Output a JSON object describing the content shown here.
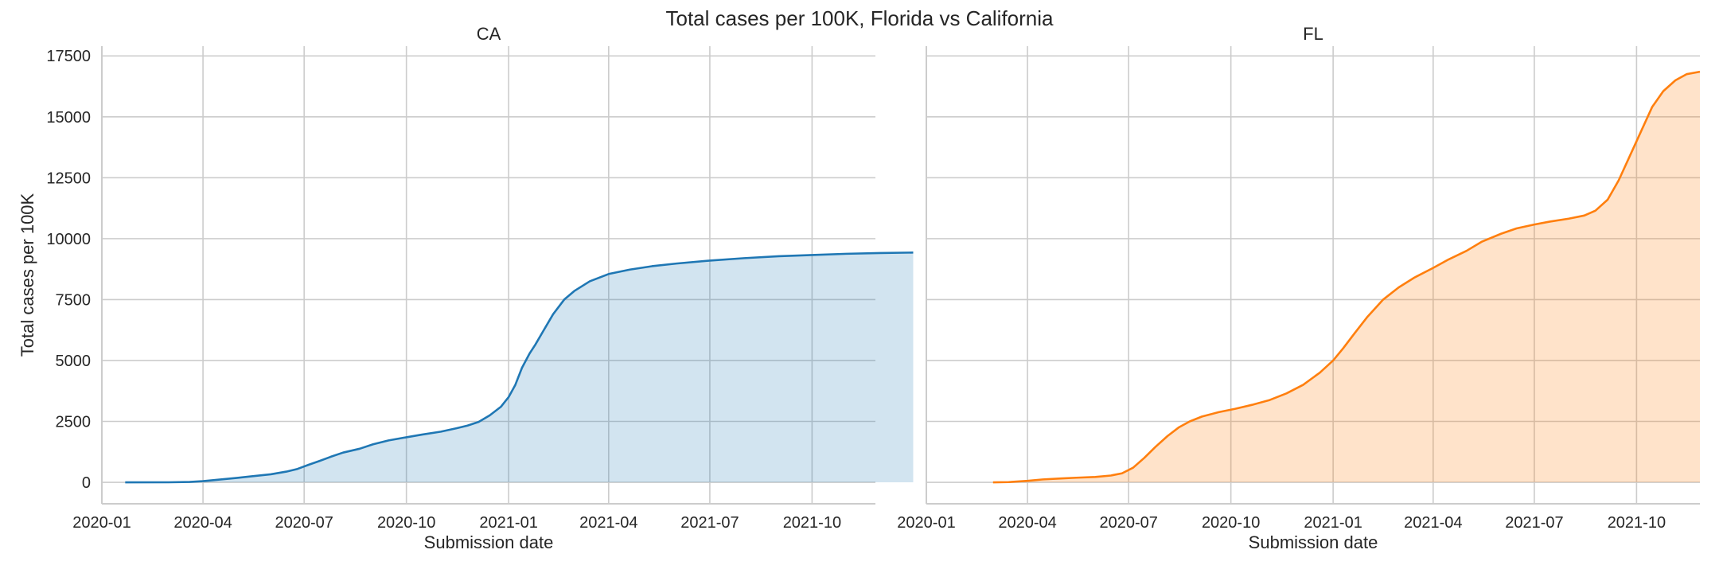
{
  "figure": {
    "title": "Total cases per 100K, Florida vs California"
  },
  "chart_data": [
    {
      "type": "area",
      "title": "CA",
      "xlabel": "Submission date",
      "ylabel": "Total cases per 100K",
      "x_ticks": [
        "2020-01",
        "2020-04",
        "2020-07",
        "2020-10",
        "2021-01",
        "2021-04",
        "2021-07",
        "2021-10"
      ],
      "y_ticks": [
        0,
        2500,
        5000,
        7500,
        10000,
        12500,
        15000,
        17500
      ],
      "xlim": [
        "2020-01-01",
        "2021-11-27"
      ],
      "ylim": [
        -880,
        17900
      ],
      "grid": true,
      "line_color": "#1f77b4",
      "fill_color": "#1f77b4",
      "fill_opacity": 0.2,
      "series": [
        {
          "points": [
            [
              "2020-01-22",
              0
            ],
            [
              "2020-03-01",
              2
            ],
            [
              "2020-03-20",
              15
            ],
            [
              "2020-04-01",
              50
            ],
            [
              "2020-04-15",
              110
            ],
            [
              "2020-05-01",
              180
            ],
            [
              "2020-05-15",
              250
            ],
            [
              "2020-06-01",
              330
            ],
            [
              "2020-06-15",
              440
            ],
            [
              "2020-06-25",
              550
            ],
            [
              "2020-07-05",
              720
            ],
            [
              "2020-07-15",
              880
            ],
            [
              "2020-07-25",
              1050
            ],
            [
              "2020-08-05",
              1220
            ],
            [
              "2020-08-20",
              1380
            ],
            [
              "2020-09-01",
              1560
            ],
            [
              "2020-09-15",
              1720
            ],
            [
              "2020-10-01",
              1850
            ],
            [
              "2020-10-15",
              1960
            ],
            [
              "2020-11-01",
              2080
            ],
            [
              "2020-11-15",
              2220
            ],
            [
              "2020-11-25",
              2330
            ],
            [
              "2020-12-05",
              2480
            ],
            [
              "2020-12-15",
              2750
            ],
            [
              "2020-12-25",
              3100
            ],
            [
              "2021-01-01",
              3500
            ],
            [
              "2021-01-07",
              4000
            ],
            [
              "2021-01-13",
              4700
            ],
            [
              "2021-01-20",
              5300
            ],
            [
              "2021-01-25",
              5650
            ],
            [
              "2021-02-01",
              6200
            ],
            [
              "2021-02-10",
              6900
            ],
            [
              "2021-02-20",
              7500
            ],
            [
              "2021-03-01",
              7850
            ],
            [
              "2021-03-15",
              8250
            ],
            [
              "2021-04-01",
              8550
            ],
            [
              "2021-04-20",
              8730
            ],
            [
              "2021-05-10",
              8870
            ],
            [
              "2021-06-01",
              8980
            ],
            [
              "2021-07-01",
              9100
            ],
            [
              "2021-08-01",
              9200
            ],
            [
              "2021-09-01",
              9280
            ],
            [
              "2021-10-01",
              9330
            ],
            [
              "2021-11-01",
              9380
            ],
            [
              "2021-12-01",
              9410
            ],
            [
              "2021-12-31",
              9430
            ]
          ]
        }
      ]
    },
    {
      "type": "area",
      "title": "FL",
      "xlabel": "Submission date",
      "ylabel": "",
      "x_ticks": [
        "2020-01",
        "2020-04",
        "2020-07",
        "2020-10",
        "2021-01",
        "2021-04",
        "2021-07",
        "2021-10"
      ],
      "y_ticks": [
        0,
        2500,
        5000,
        7500,
        10000,
        12500,
        15000,
        17500
      ],
      "xlim": [
        "2020-01-01",
        "2021-11-27"
      ],
      "ylim": [
        -880,
        17900
      ],
      "grid": true,
      "line_color": "#ff7f0e",
      "fill_color": "#ff7f0e",
      "fill_opacity": 0.22,
      "series": [
        {
          "points": [
            [
              "2020-03-01",
              0
            ],
            [
              "2020-03-15",
              10
            ],
            [
              "2020-04-01",
              60
            ],
            [
              "2020-04-15",
              120
            ],
            [
              "2020-05-01",
              160
            ],
            [
              "2020-05-15",
              190
            ],
            [
              "2020-06-01",
              220
            ],
            [
              "2020-06-15",
              280
            ],
            [
              "2020-06-25",
              370
            ],
            [
              "2020-07-05",
              600
            ],
            [
              "2020-07-15",
              1000
            ],
            [
              "2020-07-25",
              1450
            ],
            [
              "2020-08-05",
              1900
            ],
            [
              "2020-08-15",
              2250
            ],
            [
              "2020-08-25",
              2500
            ],
            [
              "2020-09-05",
              2700
            ],
            [
              "2020-09-20",
              2880
            ],
            [
              "2020-10-05",
              3020
            ],
            [
              "2020-10-20",
              3180
            ],
            [
              "2020-11-05",
              3380
            ],
            [
              "2020-11-20",
              3650
            ],
            [
              "2020-12-05",
              4000
            ],
            [
              "2020-12-20",
              4500
            ],
            [
              "2021-01-01",
              5000
            ],
            [
              "2021-01-10",
              5500
            ],
            [
              "2021-01-20",
              6100
            ],
            [
              "2021-02-01",
              6800
            ],
            [
              "2021-02-15",
              7500
            ],
            [
              "2021-03-01",
              8000
            ],
            [
              "2021-03-15",
              8400
            ],
            [
              "2021-04-01",
              8800
            ],
            [
              "2021-04-15",
              9150
            ],
            [
              "2021-05-01",
              9500
            ],
            [
              "2021-05-15",
              9880
            ],
            [
              "2021-06-01",
              10200
            ],
            [
              "2021-06-15",
              10420
            ],
            [
              "2021-07-01",
              10580
            ],
            [
              "2021-07-15",
              10700
            ],
            [
              "2021-08-01",
              10820
            ],
            [
              "2021-08-15",
              10950
            ],
            [
              "2021-08-25",
              11150
            ],
            [
              "2021-09-05",
              11600
            ],
            [
              "2021-09-15",
              12400
            ],
            [
              "2021-09-25",
              13400
            ],
            [
              "2021-10-05",
              14400
            ],
            [
              "2021-10-15",
              15400
            ],
            [
              "2021-10-25",
              16050
            ],
            [
              "2021-11-05",
              16500
            ],
            [
              "2021-11-15",
              16750
            ],
            [
              "2021-11-27",
              16850
            ]
          ]
        }
      ]
    }
  ]
}
